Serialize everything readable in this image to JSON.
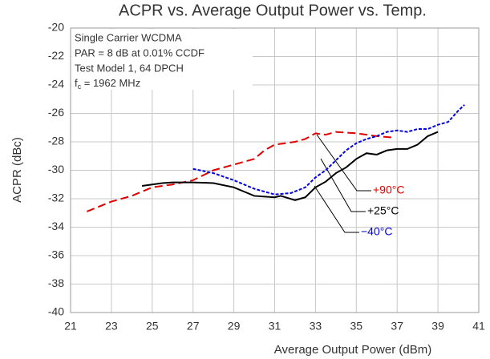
{
  "chart_data": {
    "type": "line",
    "title": "ACPR vs. Average Output Power vs. Temp.",
    "xlabel": "Average Output Power (dBm)",
    "ylabel": "ACPR (dBc)",
    "annotation_lines": [
      "Single Carrier WCDMA",
      "PAR = 8 dB at 0.01% CCDF",
      "Test Model 1, 64 DPCH"
    ],
    "annotation_fc": [
      "f",
      "c",
      " = 1962 MHz"
    ],
    "xlim": [
      21,
      41
    ],
    "xticks": [
      21,
      23,
      25,
      27,
      29,
      31,
      33,
      35,
      37,
      39,
      41
    ],
    "ylim": [
      -40,
      -20
    ],
    "yticks": [
      -20,
      -22,
      -24,
      -26,
      -28,
      -30,
      -32,
      -34,
      -36,
      -38,
      -40
    ],
    "grid": true,
    "series": [
      {
        "name": "+90°C",
        "color": "#e00000",
        "style": "dashed",
        "x": [
          21.8,
          23,
          24,
          25,
          26,
          27,
          28,
          29,
          30,
          30.5,
          31,
          32,
          32.5,
          33,
          33.5,
          34,
          35,
          36,
          36.8
        ],
        "values": [
          -32.9,
          -32.2,
          -31.8,
          -31.2,
          -31.0,
          -30.7,
          -30.0,
          -29.6,
          -29.2,
          -28.6,
          -28.2,
          -28.0,
          -27.8,
          -27.4,
          -27.5,
          -27.3,
          -27.4,
          -27.6,
          -27.7
        ]
      },
      {
        "name": "+25°C",
        "color": "#000000",
        "style": "solid",
        "x": [
          24.5,
          25.5,
          26,
          27,
          28,
          29,
          29.5,
          30,
          31,
          31.3,
          32,
          32.5,
          33,
          33.5,
          34,
          34.5,
          35,
          35.5,
          36,
          36.5,
          37,
          37.5,
          38,
          38.5,
          39
        ],
        "values": [
          -31.1,
          -30.9,
          -30.85,
          -30.85,
          -30.9,
          -31.2,
          -31.5,
          -31.8,
          -31.9,
          -31.8,
          -32.1,
          -31.9,
          -31.2,
          -30.8,
          -30.2,
          -29.8,
          -29.2,
          -28.8,
          -28.9,
          -28.6,
          -28.5,
          -28.5,
          -28.2,
          -27.6,
          -27.3
        ]
      },
      {
        "name": "−40°C",
        "color": "#0000e0",
        "style": "dotted",
        "x": [
          27,
          28,
          29,
          30,
          31,
          31.8,
          32.5,
          33,
          33.5,
          34,
          34.5,
          35,
          35.5,
          36,
          36.5,
          37,
          37.5,
          38,
          38.5,
          39,
          39.5,
          40,
          40.3
        ],
        "values": [
          -29.9,
          -30.2,
          -30.7,
          -31.3,
          -31.7,
          -31.6,
          -31.2,
          -30.5,
          -30.0,
          -29.3,
          -28.6,
          -28.1,
          -27.8,
          -27.6,
          -27.3,
          -27.2,
          -27.3,
          -27.1,
          -27.1,
          -26.8,
          -26.6,
          -25.8,
          -25.4
        ]
      }
    ]
  }
}
